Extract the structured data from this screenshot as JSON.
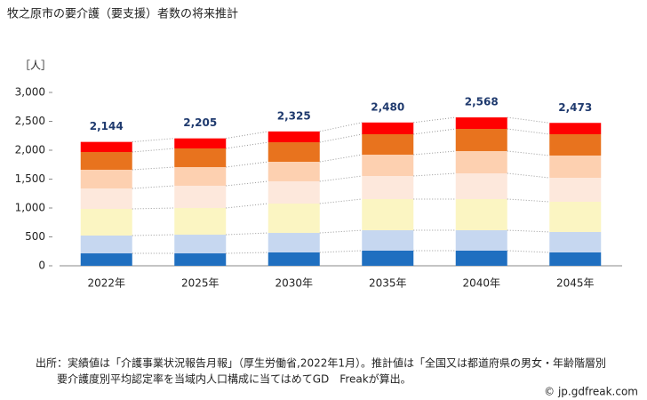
{
  "chart_data": {
    "type": "stacked_bar",
    "title": "牧之原市の要介護（要支援）者数の将来推計",
    "y_label": "［人］",
    "categories": [
      "2022年",
      "2025年",
      "2030年",
      "2035年",
      "2040年",
      "2045年"
    ],
    "series": [
      {
        "color": "#1f6fc0",
        "values": [
          215,
          215,
          231,
          262,
          262,
          231
        ]
      },
      {
        "color": "#c6d7f0",
        "values": [
          308,
          323,
          338,
          353,
          353,
          354
        ]
      },
      {
        "color": "#fbf5c2",
        "values": [
          462,
          462,
          508,
          539,
          539,
          523
        ]
      },
      {
        "color": "#fde8dc",
        "values": [
          353,
          385,
          385,
          400,
          446,
          415
        ]
      },
      {
        "color": "#fdd0b0",
        "values": [
          324,
          323,
          338,
          369,
          385,
          385
        ]
      },
      {
        "color": "#e8731e",
        "values": [
          307,
          323,
          338,
          354,
          384,
          369
        ]
      },
      {
        "color": "#ff0000",
        "values": [
          175,
          174,
          187,
          203,
          199,
          196
        ]
      }
    ],
    "totals": [
      {
        "value": 2144,
        "label": "2,144"
      },
      {
        "value": 2205,
        "label": "2,205"
      },
      {
        "value": 2325,
        "label": "2,325"
      },
      {
        "value": 2480,
        "label": "2,480"
      },
      {
        "value": 2568,
        "label": "2,568"
      },
      {
        "value": 2473,
        "label": "2,473"
      }
    ],
    "ylim": [
      0,
      3000
    ],
    "yticks": [
      0,
      500,
      {
        "value": 1000,
        "label": "1,000"
      },
      {
        "value": 1500,
        "label": "1,500"
      },
      {
        "value": 2000,
        "label": "2,000"
      },
      {
        "value": 2500,
        "label": "2,500"
      },
      {
        "value": 3000,
        "label": "3,000"
      }
    ],
    "source": [
      "出所：実績値は「介護事業状況報告月報」（厚生労働省,2022年1月）。推計値は「全国又は都道府県の男女・年齢階層別",
      "要介護度別平均認定率を当域内人口構成に当てはめてGD　Freakが算出。"
    ],
    "credit": "© jp.gdfreak.com"
  }
}
